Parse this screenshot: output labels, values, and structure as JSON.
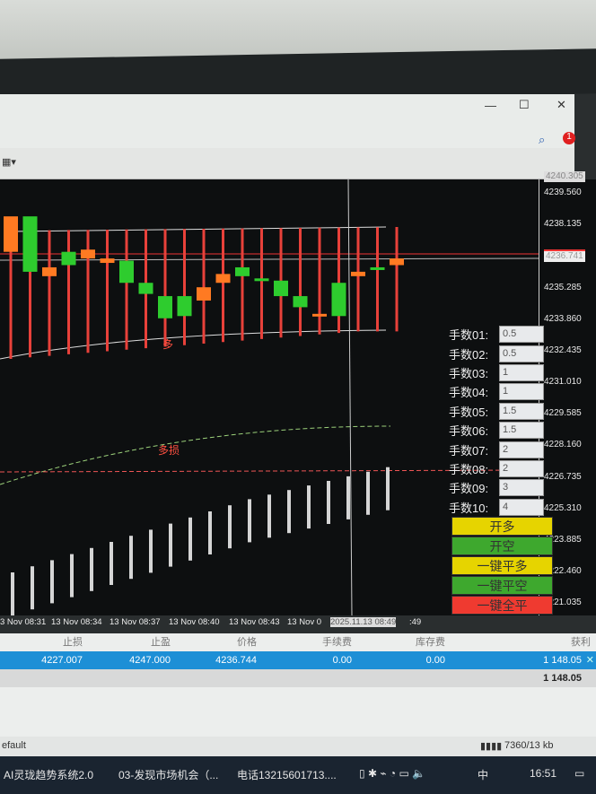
{
  "window": {
    "minimize": "—",
    "maximize": "☐",
    "close": "✕",
    "notification_count": "1"
  },
  "price_axis": {
    "top_label": "4240.305",
    "current_price": "4236.741",
    "ticks": [
      "4239.560",
      "4238.135",
      "4235.285",
      "4233.860",
      "4232.435",
      "4231.010",
      "4229.585",
      "4228.160",
      "4226.735",
      "4225.310",
      "4223.885",
      "4222.460",
      "4221.035"
    ]
  },
  "time_axis": {
    "ticks": [
      "3 Nov 08:31",
      "13 Nov 08:34",
      "13 Nov 08:37",
      "13 Nov 08:40",
      "13 Nov 08:43",
      "13 Nov 0"
    ],
    "crosshair_label": "2025.11.13 08:49",
    "tail": ":49"
  },
  "chart_labels": {
    "long": "多",
    "long_stop": "多损"
  },
  "chart_data": {
    "type": "candlestick",
    "candles": [
      {
        "o": 4238.5,
        "c": 4236.9
      },
      {
        "o": 4236.0,
        "c": 4238.5
      },
      {
        "o": 4236.2,
        "c": 4235.8
      },
      {
        "o": 4236.3,
        "c": 4236.9
      },
      {
        "o": 4237.0,
        "c": 4236.6
      },
      {
        "o": 4236.6,
        "c": 4236.4
      },
      {
        "o": 4235.5,
        "c": 4236.5
      },
      {
        "o": 4235.0,
        "c": 4235.5
      },
      {
        "o": 4233.9,
        "c": 4234.9
      },
      {
        "o": 4234.0,
        "c": 4234.9
      },
      {
        "o": 4235.3,
        "c": 4234.7
      },
      {
        "o": 4235.9,
        "c": 4235.5
      },
      {
        "o": 4235.8,
        "c": 4236.2
      },
      {
        "o": 4235.7,
        "c": 4235.7
      },
      {
        "o": 4234.9,
        "c": 4235.6
      },
      {
        "o": 4234.4,
        "c": 4234.9
      },
      {
        "o": 4234.1,
        "c": 4234.0
      },
      {
        "o": 4234.0,
        "c": 4235.5
      },
      {
        "o": 4236.0,
        "c": 4235.8
      },
      {
        "o": 4236.2,
        "c": 4236.2
      },
      {
        "o": 4236.6,
        "c": 4236.3
      }
    ],
    "oscillator": [
      10,
      14,
      18,
      22,
      26,
      30,
      34,
      38,
      42,
      46,
      50,
      54,
      58,
      61,
      64,
      67,
      70,
      73,
      76,
      79
    ],
    "colors": {
      "bull": "#2ecc2e",
      "bear": "#ff7a22",
      "band": "#e8413a",
      "oscillator": "#d5d5d5"
    }
  },
  "lots": [
    {
      "label": "手数01:",
      "value": "0.5"
    },
    {
      "label": "手数02:",
      "value": "0.5"
    },
    {
      "label": "手数03:",
      "value": "1"
    },
    {
      "label": "手数04:",
      "value": "1"
    },
    {
      "label": "手数05:",
      "value": "1.5"
    },
    {
      "label": "手数06:",
      "value": "1.5"
    },
    {
      "label": "手数07:",
      "value": "2"
    },
    {
      "label": "手数08:",
      "value": "2"
    },
    {
      "label": "手数09:",
      "value": "3"
    },
    {
      "label": "手数10:",
      "value": "4"
    }
  ],
  "buttons": {
    "open_long": "开多",
    "open_short": "开空",
    "close_long": "一键平多",
    "close_short": "一键平空",
    "close_all": "一键全平"
  },
  "table": {
    "headers": [
      "止损",
      "止盈",
      "价格",
      "手续费",
      "库存费",
      "获利"
    ],
    "row": [
      "4227.007",
      "4247.000",
      "4236.744",
      "0.00",
      "0.00",
      "1 148.05"
    ],
    "total": "1 148.05"
  },
  "status": {
    "profile": "efault",
    "traffic": "7360/13 kb"
  },
  "taskbar": {
    "apps": [
      "AI灵珑趋势系统2.0",
      "03-发现市场机会（...",
      "电话13215601713...."
    ],
    "ime": "中",
    "time": "16:51"
  }
}
